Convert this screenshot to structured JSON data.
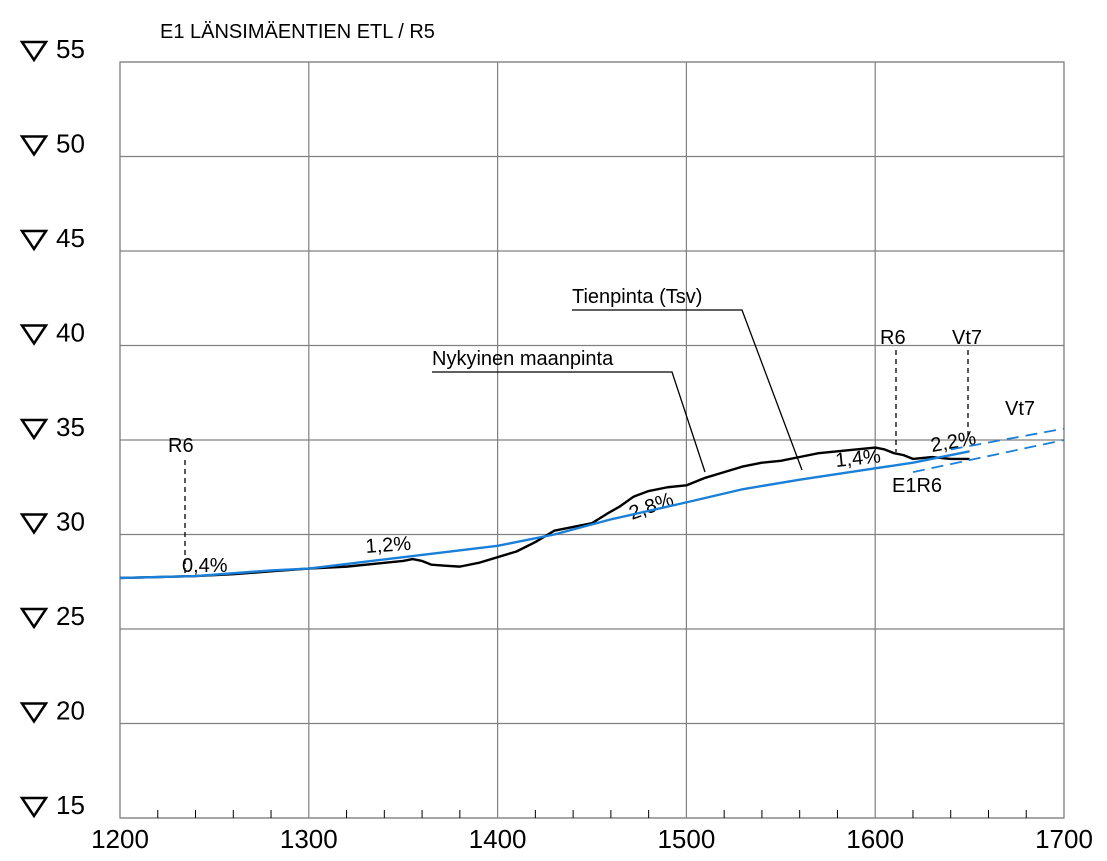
{
  "chart_data": {
    "type": "line",
    "title": "E1 LÄNSIMÄENTIEN ETL / R5",
    "xlim": [
      1200,
      1700
    ],
    "xticks": [
      1200,
      1300,
      1400,
      1500,
      1600,
      1700
    ],
    "ylim": [
      15,
      55
    ],
    "yticks": [
      15,
      20,
      25,
      30,
      35,
      40,
      45,
      50,
      55
    ],
    "grid": true,
    "series": [
      {
        "name": "Nykyinen maanpinta",
        "color": "#000000",
        "dash": false,
        "x": [
          1200,
          1220,
          1240,
          1260,
          1280,
          1300,
          1320,
          1340,
          1350,
          1355,
          1360,
          1365,
          1372,
          1380,
          1390,
          1400,
          1410,
          1420,
          1430,
          1440,
          1450,
          1458,
          1465,
          1472,
          1480,
          1490,
          1500,
          1510,
          1520,
          1530,
          1540,
          1550,
          1560,
          1570,
          1580,
          1590,
          1600,
          1605,
          1610,
          1615,
          1620,
          1630,
          1640,
          1650
        ],
        "values": [
          27.7,
          27.75,
          27.8,
          27.9,
          28.05,
          28.2,
          28.3,
          28.5,
          28.6,
          28.7,
          28.6,
          28.4,
          28.35,
          28.3,
          28.5,
          28.8,
          29.1,
          29.6,
          30.2,
          30.4,
          30.6,
          31.1,
          31.5,
          32.0,
          32.3,
          32.5,
          32.6,
          33.0,
          33.3,
          33.6,
          33.8,
          33.9,
          34.1,
          34.3,
          34.4,
          34.5,
          34.6,
          34.5,
          34.3,
          34.2,
          34.0,
          34.1,
          34.0,
          34.0
        ]
      },
      {
        "name": "Tienpinta (Tsv)",
        "color": "#1a7fd8",
        "dash": false,
        "x": [
          1200,
          1240,
          1280,
          1300,
          1350,
          1400,
          1430,
          1460,
          1500,
          1530,
          1560,
          1600,
          1620,
          1650
        ],
        "values": [
          27.7,
          27.8,
          28.1,
          28.2,
          28.8,
          29.4,
          30.0,
          30.8,
          31.7,
          32.4,
          32.9,
          33.5,
          33.8,
          34.4
        ]
      },
      {
        "name": "Vt7",
        "color": "#1a7fd8",
        "dash": true,
        "x": [
          1640,
          1700
        ],
        "values": [
          34.5,
          35.6
        ]
      },
      {
        "name": "E1R6",
        "color": "#1a7fd8",
        "dash": true,
        "x": [
          1620,
          1700
        ],
        "values": [
          33.3,
          35.0
        ]
      }
    ],
    "annotations": {
      "slope_1": "0,4%",
      "slope_2": "1,2%",
      "slope_3": "2,8%",
      "slope_4": "1,4%",
      "slope_5": "2,2%",
      "r6_left": "R6",
      "r6_right": "R6",
      "vt7_top": "Vt7"
    }
  }
}
